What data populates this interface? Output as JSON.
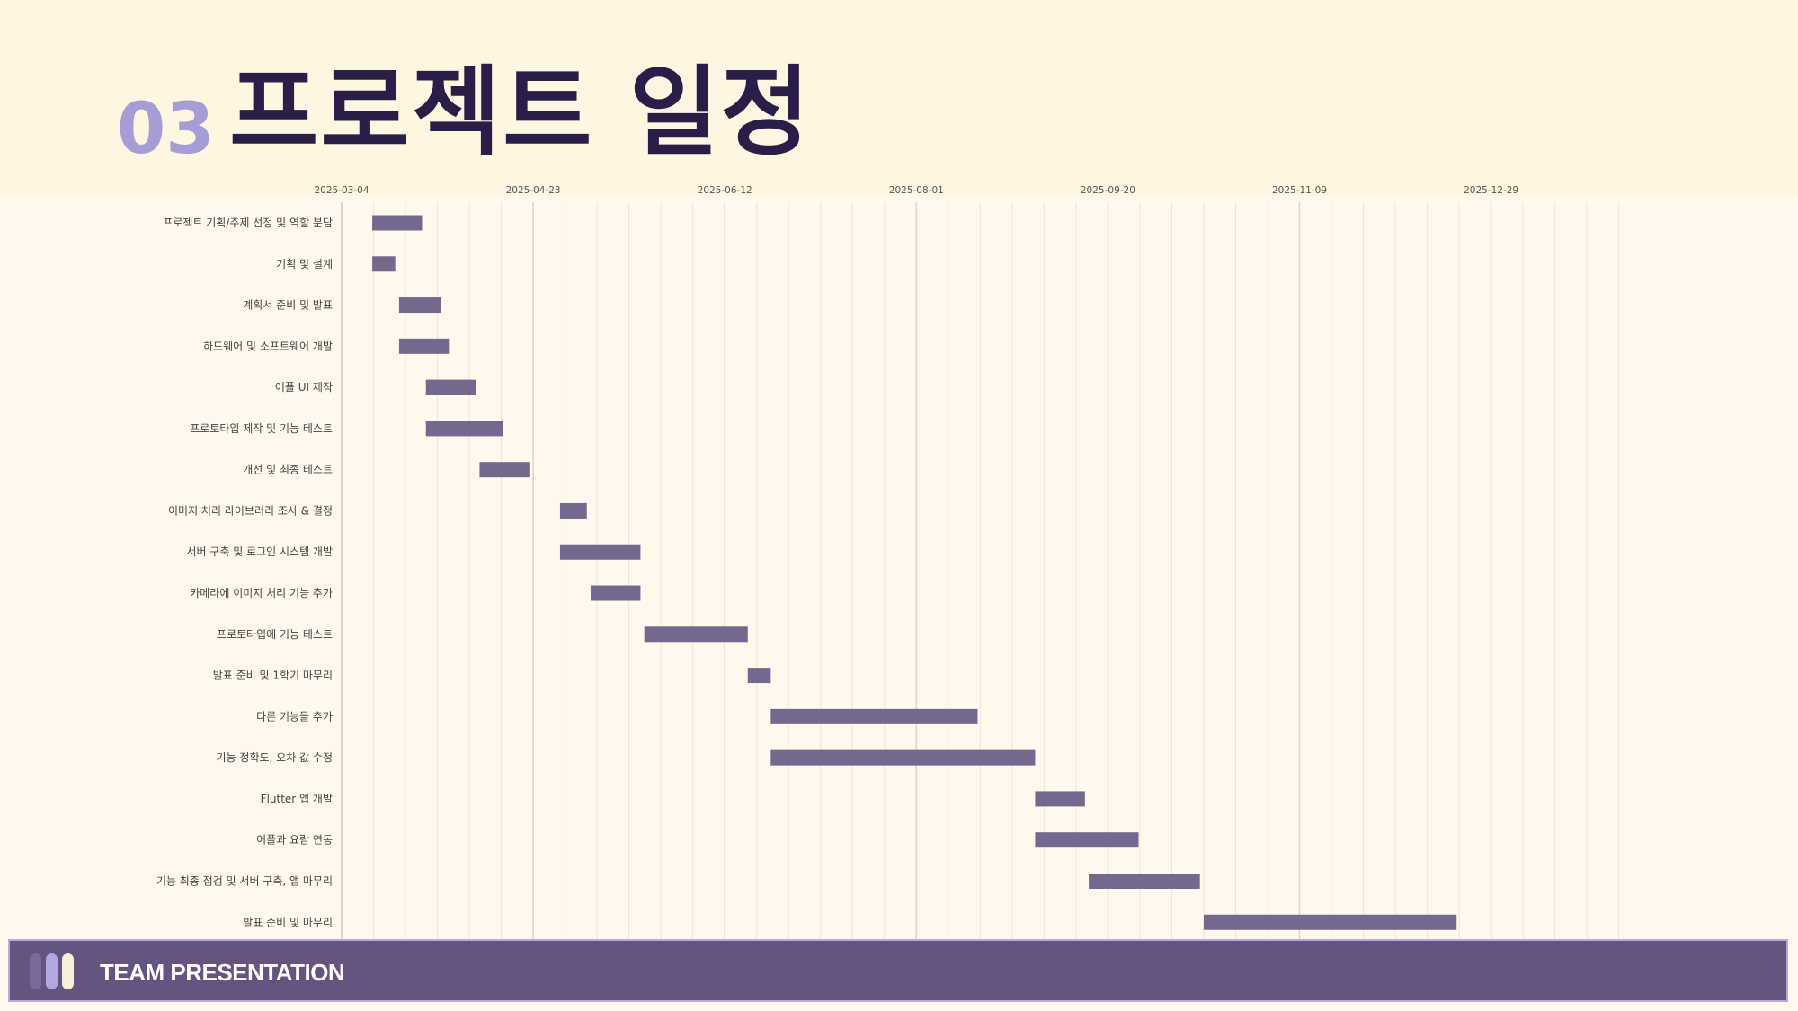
{
  "header": {
    "section_number": "03",
    "title": "프로젝트 일정"
  },
  "footer": {
    "label": "TEAM PRESENTATION"
  },
  "colors": {
    "bar": "#74688f",
    "title": "#2a1d48",
    "accent": "#a59ed6",
    "footer_bg": "#64547f"
  },
  "chart_data": {
    "type": "gantt",
    "x_axis": {
      "type": "date",
      "ticks": [
        "2025-03-04",
        "2025-04-23",
        "2025-06-12",
        "2025-08-01",
        "2025-09-20",
        "2025-11-09",
        "2025-12-29"
      ],
      "range": [
        "2025-03-04",
        "2026-02-02"
      ]
    },
    "grid": true,
    "tasks": [
      {
        "label": "프로젝트 기획/주제 선정 및 역할 분담",
        "start": "2025-03-12",
        "end": "2025-03-25"
      },
      {
        "label": "기획 및 설계",
        "start": "2025-03-12",
        "end": "2025-03-18"
      },
      {
        "label": "계획서 준비 및 발표",
        "start": "2025-03-19",
        "end": "2025-03-30"
      },
      {
        "label": "하드웨어 및 소프트웨어 개발",
        "start": "2025-03-19",
        "end": "2025-04-01"
      },
      {
        "label": "어플 UI 제작",
        "start": "2025-03-26",
        "end": "2025-04-08"
      },
      {
        "label": "프로토타입 제작 및 기능 테스트",
        "start": "2025-03-26",
        "end": "2025-04-15"
      },
      {
        "label": "개선 및 최종 테스트",
        "start": "2025-04-09",
        "end": "2025-04-22"
      },
      {
        "label": "이미지 처리 라이브러리 조사 & 결정",
        "start": "2025-04-30",
        "end": "2025-05-07"
      },
      {
        "label": "서버 구축 및 로그인 시스템 개발",
        "start": "2025-04-30",
        "end": "2025-05-21"
      },
      {
        "label": "카메라에 이미지 처리 기능 추가",
        "start": "2025-05-08",
        "end": "2025-05-21"
      },
      {
        "label": "프로토타입에 기능 테스트",
        "start": "2025-05-22",
        "end": "2025-06-18"
      },
      {
        "label": "발표 준비 및 1학기 마무리",
        "start": "2025-06-18",
        "end": "2025-06-24"
      },
      {
        "label": "다른 기능들 추가",
        "start": "2025-06-24",
        "end": "2025-08-17"
      },
      {
        "label": "기능 정확도, 오차 값 수정",
        "start": "2025-06-24",
        "end": "2025-09-01"
      },
      {
        "label": "Flutter 앱 개발",
        "start": "2025-09-01",
        "end": "2025-09-14"
      },
      {
        "label": "어플과 요람 연동",
        "start": "2025-09-01",
        "end": "2025-09-28"
      },
      {
        "label": "기능 최종 점검 및 서버 구축, 앱 마무리",
        "start": "2025-09-15",
        "end": "2025-10-14"
      },
      {
        "label": "발표 준비 및 마무리",
        "start": "2025-10-15",
        "end": "2025-12-20"
      }
    ]
  }
}
